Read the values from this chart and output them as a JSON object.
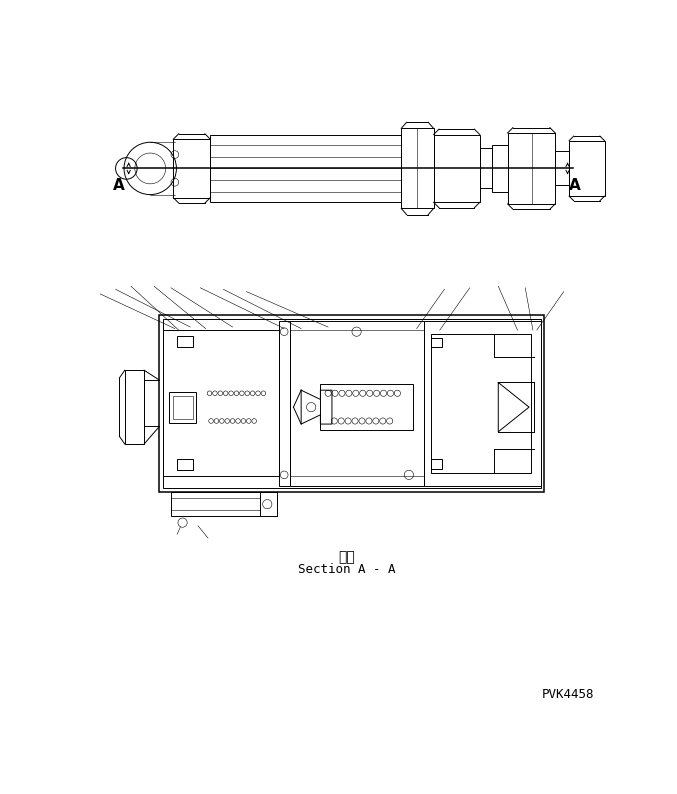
{
  "section_label_japanese": "断面",
  "section_label_english": "Section A - A",
  "pvk_label": "PVK4458",
  "bg_color": "#ffffff",
  "line_color": "#000000",
  "lw": 0.7,
  "tlw": 0.4,
  "thklw": 1.1
}
